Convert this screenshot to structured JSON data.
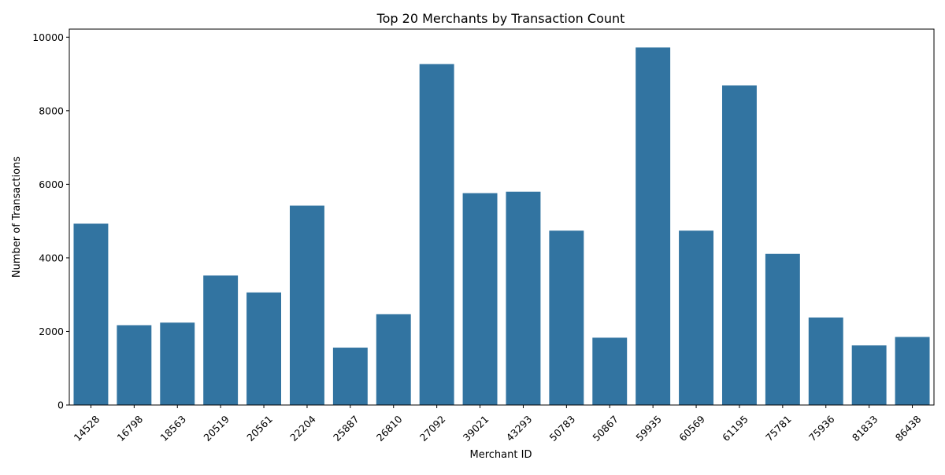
{
  "chart_data": {
    "type": "bar",
    "title": "Top 20 Merchants by Transaction Count",
    "xlabel": "Merchant ID",
    "ylabel": "Number of Transactions",
    "categories": [
      "14528",
      "16798",
      "18563",
      "20519",
      "20561",
      "22204",
      "25887",
      "26810",
      "27092",
      "39021",
      "43293",
      "50783",
      "50867",
      "59935",
      "60569",
      "61195",
      "75781",
      "75936",
      "81833",
      "86438"
    ],
    "values": [
      4930,
      2170,
      2240,
      3520,
      3060,
      5420,
      1560,
      2470,
      9270,
      5760,
      5800,
      4740,
      1830,
      9720,
      4740,
      8690,
      4110,
      2380,
      1620,
      1850
    ],
    "ylim": [
      0,
      10220
    ],
    "yticks": [
      0,
      2000,
      4000,
      6000,
      8000,
      10000
    ],
    "bar_color": "#3274a1",
    "grid": false
  }
}
